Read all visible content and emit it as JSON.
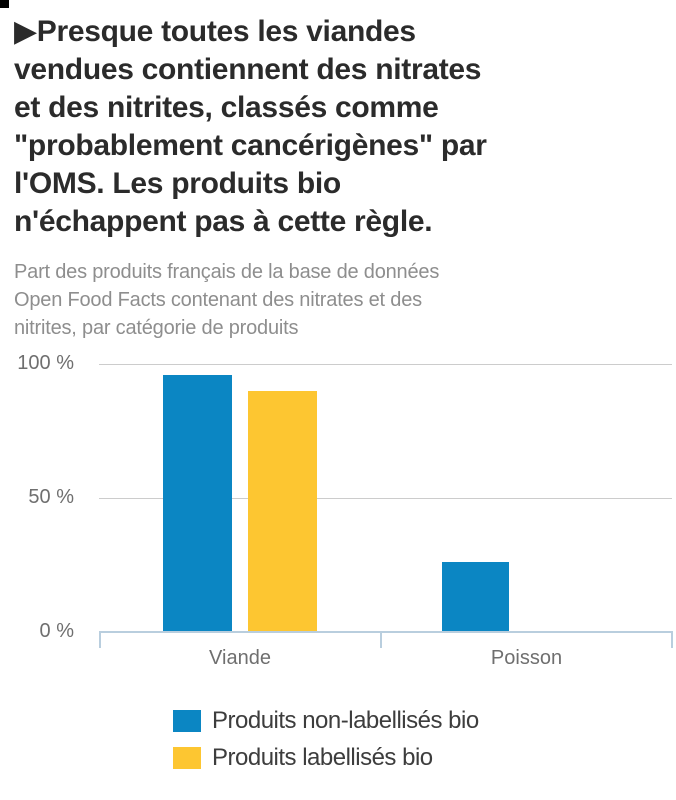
{
  "header": {
    "title_lines": [
      "▶Presque toutes les viandes",
      "vendues contiennent des nitrates",
      "et des nitrites, classés comme",
      "\"probablement cancérigènes\" par",
      "l'OMS. Les produits bio",
      "n'échappent pas à cette règle."
    ],
    "subtitle_lines": [
      "Part des produits français de la base de données",
      "Open Food Facts contenant des nitrates et des",
      "nitrites, par catégorie de produits"
    ]
  },
  "chart_data": {
    "type": "bar",
    "title": "Presque toutes les viandes vendues contiennent des nitrates et des nitrites, classés comme \"probablement cancérigènes\" par l'OMS. Les produits bio n'échappent pas à cette règle.",
    "subtitle": "Part des produits français de la base de données Open Food Facts contenant des nitrates et des nitrites, par catégorie de produits",
    "categories": [
      "Viande",
      "Poisson"
    ],
    "series": [
      {
        "name": "Produits non-labellisés bio",
        "color": "#0b86c3",
        "values": [
          96,
          26
        ]
      },
      {
        "name": "Produits labellisés bio",
        "color": "#fdc631",
        "values": [
          90,
          0
        ]
      }
    ],
    "xlabel": "",
    "ylabel": "",
    "ylim": [
      0,
      100
    ],
    "yticks": [
      "0 %",
      "50 %",
      "100 %"
    ],
    "grid": true,
    "legend_position": "bottom",
    "colors": {
      "grid": "#cccccc",
      "axis": "#b9cede",
      "title": "#2b2b2b",
      "subtitle": "#8e8e8e",
      "axis_labels": "#6f6f6f",
      "legend_text": "#3d3d3d"
    }
  }
}
